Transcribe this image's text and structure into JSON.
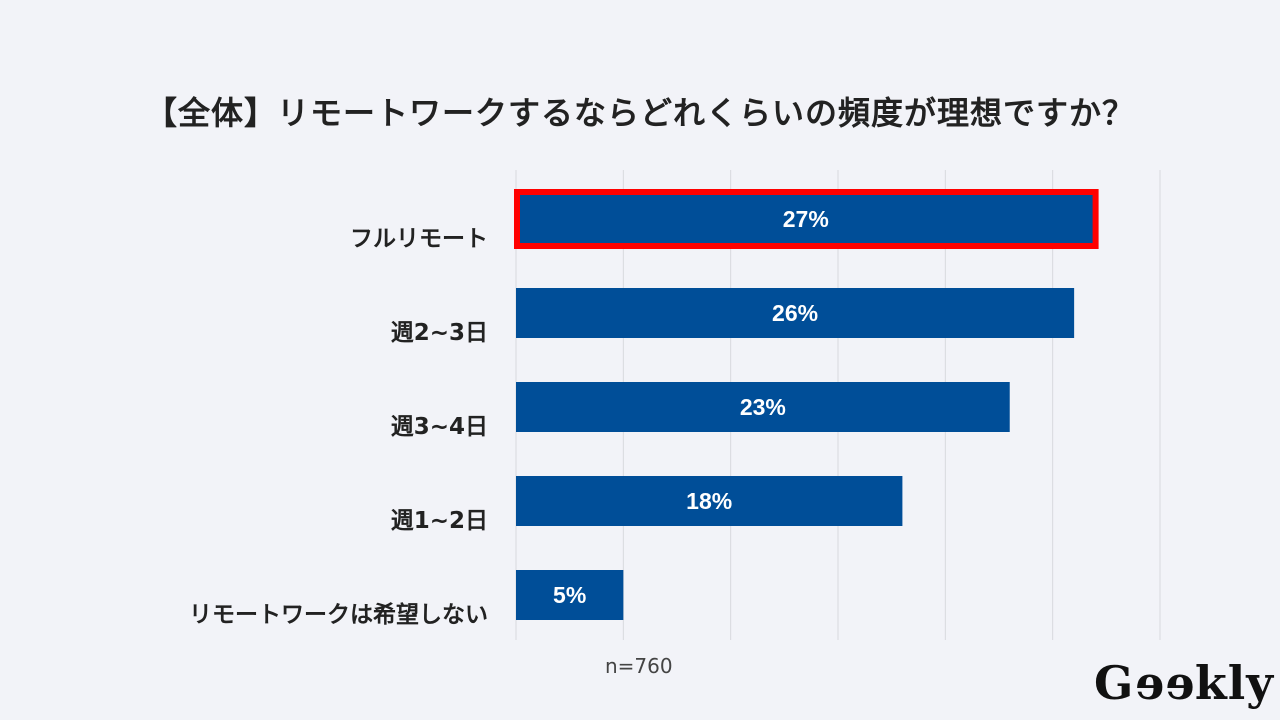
{
  "chart_data": {
    "type": "bar",
    "orientation": "horizontal",
    "title": "【全体】リモートワークするならどれくらいの頻度が理想ですか？",
    "categories": [
      "フルリモート",
      "週2~3日",
      "週3~4日",
      "週1~2日",
      "リモートワークは希望しない"
    ],
    "values": [
      27,
      26,
      23,
      18,
      5
    ],
    "value_labels": [
      "27%",
      "26%",
      "23%",
      "18%",
      "5%"
    ],
    "xlim": [
      0,
      30
    ],
    "grid": true,
    "highlighted_category": "フルリモート",
    "bar_color": "#004e98",
    "highlight_color": "#ff0000",
    "note": "n=760"
  },
  "logo": "Geekly"
}
